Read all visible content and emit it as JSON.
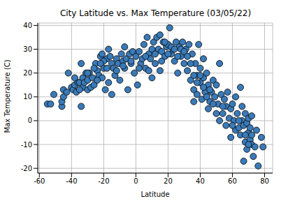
{
  "chart_data": {
    "type": "scatter",
    "title": "City Latitude vs. Max Temperature (03/05/22)",
    "x_label": "Latitude",
    "y_label": "Max Temperature (C)",
    "color": "#3a7ab8",
    "marker": "circle",
    "grid": true,
    "xlim": [
      -61,
      85
    ],
    "ylim": [
      -22,
      41
    ],
    "xticks": [
      -60,
      -40,
      -20,
      0,
      20,
      40,
      60,
      80
    ],
    "yticks": [
      -20,
      -10,
      0,
      10,
      20,
      30,
      40
    ],
    "x": [
      -55,
      -53,
      -51,
      -46,
      -46,
      -45,
      -45,
      -43,
      -42,
      -40,
      -39,
      -38,
      -37,
      -36,
      -35,
      -34,
      -34,
      -33,
      -33,
      -32,
      -31,
      -30,
      -30,
      -29,
      -28,
      -27,
      -26,
      -25,
      -24,
      -23,
      -22,
      -21,
      -21,
      -20,
      -19,
      -18,
      -17,
      -17,
      -16,
      -15,
      -15,
      -14,
      -13,
      -12,
      -11,
      -10,
      -9,
      -8,
      -7,
      -7,
      -6,
      -5,
      -4,
      -3,
      -2,
      -1,
      0,
      1,
      2,
      3,
      4,
      5,
      6,
      7,
      8,
      9,
      10,
      10,
      11,
      12,
      13,
      14,
      15,
      15,
      16,
      17,
      18,
      19,
      20,
      21,
      22,
      23,
      24,
      25,
      26,
      27,
      28,
      29,
      30,
      31,
      32,
      33,
      34,
      35,
      36,
      36,
      37,
      38,
      38,
      39,
      40,
      40,
      41,
      42,
      42,
      43,
      44,
      45,
      45,
      46,
      47,
      48,
      49,
      50,
      50,
      51,
      52,
      52,
      53,
      54,
      55,
      56,
      56,
      57,
      58,
      59,
      59,
      60,
      61,
      62,
      62,
      63,
      64,
      65,
      65,
      66,
      66,
      67,
      67,
      68,
      68,
      69,
      69,
      70,
      70,
      71,
      71,
      72,
      72,
      73,
      74,
      75,
      76,
      78,
      79,
      -20,
      -18,
      -12,
      -8,
      -3,
      2,
      6,
      8,
      12,
      16,
      18,
      20,
      22,
      24,
      26,
      28,
      30,
      32,
      34,
      36,
      38,
      40,
      42,
      44,
      46,
      48,
      54,
      60,
      64,
      68,
      70,
      72,
      -38,
      -35,
      -30,
      -26,
      -24,
      -22
    ],
    "values": [
      7,
      7,
      11,
      6,
      8,
      10,
      13,
      12,
      20,
      14,
      13,
      15,
      12,
      16,
      16,
      24,
      6,
      18,
      14,
      16,
      20,
      17,
      13,
      20,
      14,
      18,
      15,
      24,
      21,
      19,
      27,
      28,
      18,
      22,
      13,
      26,
      30,
      16,
      27,
      24,
      11,
      22,
      19,
      26,
      24,
      17,
      28,
      25,
      31,
      22,
      26,
      13,
      28,
      24,
      29,
      20,
      27,
      15,
      29,
      24,
      26,
      32,
      22,
      35,
      28,
      26,
      30,
      18,
      33,
      24,
      35,
      30,
      36,
      21,
      29,
      33,
      27,
      31,
      32,
      39,
      28,
      30,
      25,
      33,
      20,
      31,
      27,
      33,
      24,
      30,
      21,
      32,
      17,
      28,
      13,
      8,
      24,
      19,
      11,
      32,
      16,
      22,
      9,
      26,
      18,
      12,
      20,
      5,
      15,
      8,
      12,
      17,
      10,
      3,
      15,
      7,
      24,
      0,
      11,
      3,
      9,
      -2,
      6,
      12,
      1,
      -7,
      5,
      7,
      0,
      -4,
      10,
      3,
      -3,
      14,
      -6,
      0,
      6,
      -17,
      -2,
      -9,
      3,
      -12,
      -1,
      -5,
      1,
      -8,
      -3,
      -10,
      2,
      -15,
      -11,
      -4,
      -19,
      -7,
      -11,
      25,
      22,
      21,
      23,
      25,
      22,
      27,
      21,
      28,
      25,
      33,
      28,
      31,
      30,
      27,
      30,
      29,
      27,
      24,
      19,
      16,
      19,
      14,
      10,
      13,
      7,
      6,
      -2,
      0,
      -6,
      -10,
      -6,
      18,
      13,
      20,
      22,
      17,
      24
    ]
  }
}
